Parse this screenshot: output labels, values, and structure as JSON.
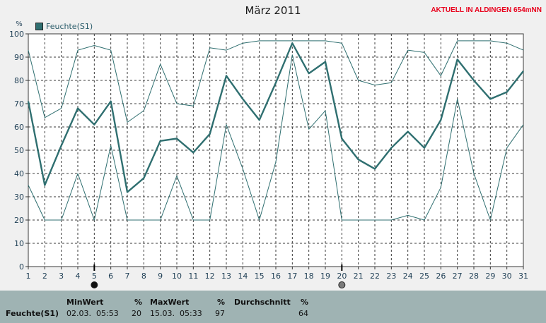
{
  "header": {
    "title": "März 2011",
    "station": "AKTUELL IN ALDINGEN 654mNN"
  },
  "legend": {
    "label": "Feuchte(S1)"
  },
  "colors": {
    "series": "#2f6f70",
    "grid": "#3a3a3a",
    "station": "#e8001c",
    "panel": "#9fb3b3"
  },
  "chart_data": {
    "type": "line",
    "title": "März 2011",
    "ylabel": "%",
    "xlabel": "",
    "ylim": [
      0,
      100
    ],
    "yticks": [
      0,
      10,
      20,
      30,
      40,
      50,
      60,
      70,
      80,
      90,
      100
    ],
    "x": [
      1,
      2,
      3,
      4,
      5,
      6,
      7,
      8,
      9,
      10,
      11,
      12,
      13,
      14,
      15,
      16,
      17,
      18,
      19,
      20,
      21,
      22,
      23,
      24,
      25,
      26,
      27,
      28,
      29,
      30,
      31
    ],
    "grid": true,
    "legend_position": "top-left",
    "markers": [
      5,
      20
    ],
    "series": [
      {
        "name": "Feuchte(S1)",
        "role": "avg",
        "values": [
          71,
          35,
          52,
          68,
          61,
          71,
          32,
          38,
          54,
          55,
          49,
          57,
          82,
          72,
          63,
          79,
          96,
          83,
          88,
          55,
          46,
          42,
          51,
          58,
          51,
          63,
          89,
          80,
          72,
          75,
          84
        ]
      },
      {
        "role": "max",
        "values": [
          93,
          64,
          68,
          93,
          95,
          93,
          62,
          67,
          87,
          70,
          69,
          94,
          93,
          96,
          97,
          97,
          97,
          97,
          97,
          96,
          80,
          78,
          79,
          93,
          92,
          82,
          97,
          97,
          97,
          96,
          93
        ]
      },
      {
        "role": "min",
        "values": [
          35,
          20,
          20,
          40,
          20,
          52,
          20,
          20,
          20,
          39,
          20,
          20,
          61,
          42,
          20,
          45,
          91,
          59,
          67,
          20,
          20,
          20,
          20,
          22,
          20,
          34,
          72,
          40,
          20,
          51,
          61
        ]
      }
    ]
  },
  "stats": {
    "headers": {
      "min": "MinWert",
      "pct1": "%",
      "max": "MaxWert",
      "pct2": "%",
      "avg": "Durchschnitt",
      "pct3": "%"
    },
    "row": {
      "name": "Feuchte(S1)",
      "min_date": "02.03.",
      "min_time": "05:53",
      "min_value": "20",
      "max_date": "15.03.",
      "max_time": "05:33",
      "max_value": "97",
      "avg_value": "64"
    }
  }
}
